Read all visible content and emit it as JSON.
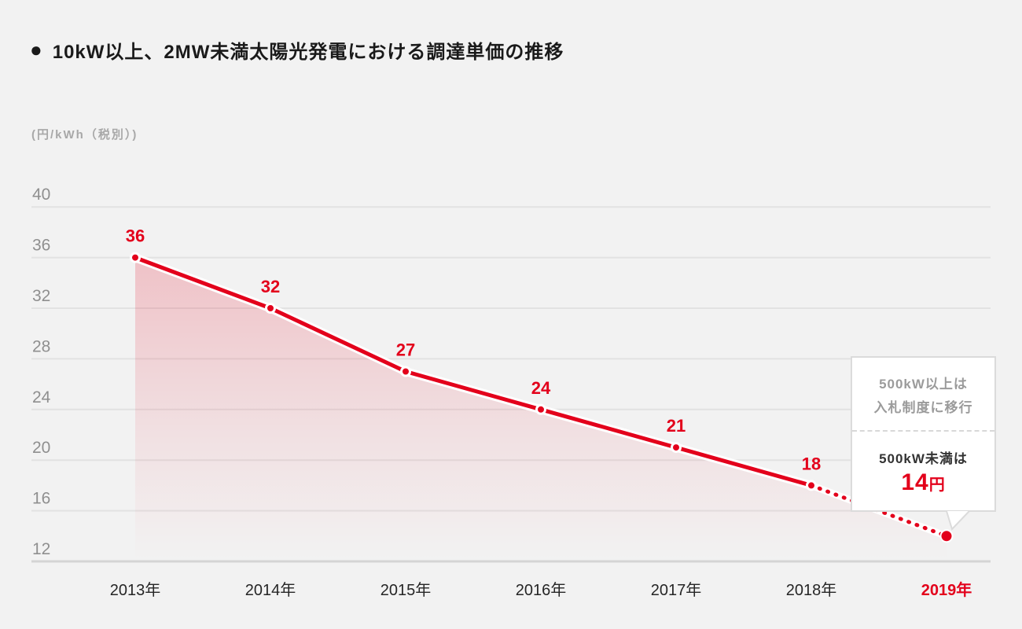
{
  "title": {
    "bullet": "●",
    "text": "10kW以上、2MW未満太陽光発電における調達単価の推移"
  },
  "unit_label": "(円/kWh（税別）)",
  "callout": {
    "top_line1": "500kW以上は",
    "top_line2": "入札制度に移行",
    "bottom_line": "500kW未満は",
    "price_value": "14",
    "price_unit": "円"
  },
  "colors": {
    "accent_red": "#e3001b",
    "background": "#f2f2f2",
    "grid": "#e2e2e2",
    "axis_base": "#d4d4d4",
    "tick_text": "#8f8f8f",
    "x_label_text": "#262626",
    "callout_gray_text": "#9b9b9b",
    "callout_dark_text": "#333333",
    "area_fill_top": "rgba(227,0,27,0.20)",
    "area_fill_bottom": "rgba(227,0,27,0)"
  },
  "chart_data": {
    "type": "line",
    "title": "10kW以上、2MW未満太陽光発電における調達単価の推移",
    "ylabel": "円/kWh（税別）",
    "categories": [
      "2013年",
      "2014年",
      "2015年",
      "2016年",
      "2017年",
      "2018年",
      "2019年"
    ],
    "values": [
      36,
      32,
      27,
      24,
      21,
      18,
      14
    ],
    "data_labels_shown": [
      36,
      32,
      27,
      24,
      21,
      18
    ],
    "solid_until_index": 5,
    "last_segment_style": "dotted",
    "highlight_last_category": true,
    "yticks": [
      40,
      36,
      32,
      28,
      24,
      20,
      16,
      12
    ],
    "ylim": [
      12,
      42
    ],
    "grid": true,
    "legend": false,
    "area_fill": true,
    "annotations": [
      "500kW以上は 入札制度に移行",
      "500kW未満は 14円"
    ]
  }
}
